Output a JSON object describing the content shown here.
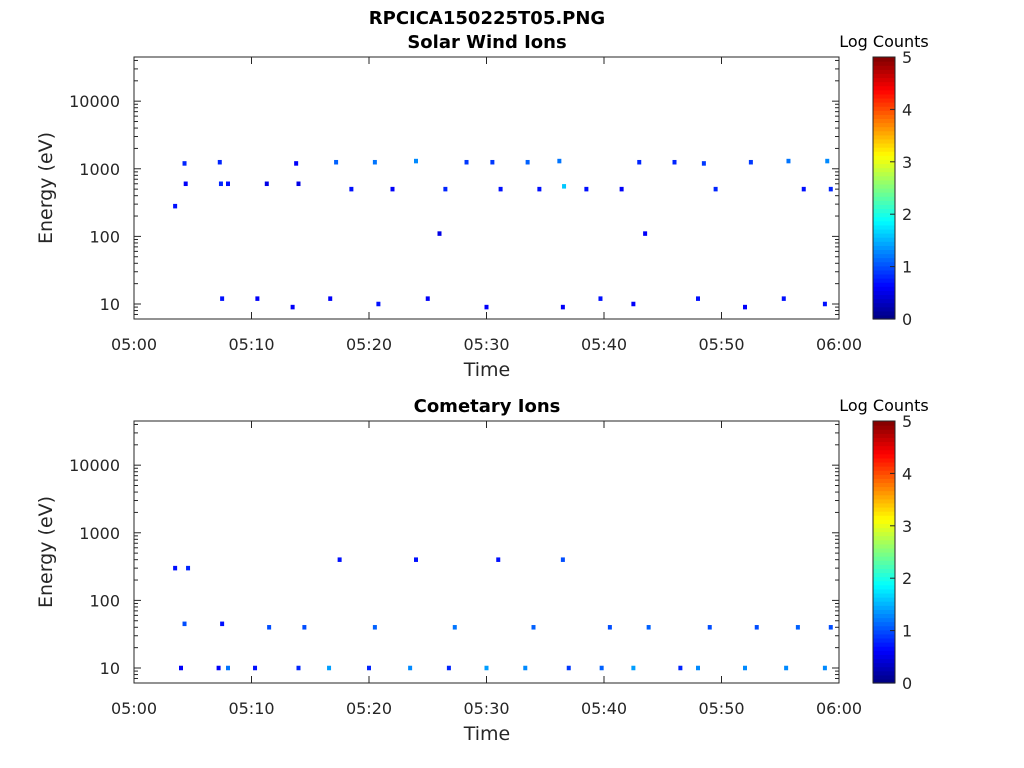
{
  "figure": {
    "title": "RPCICA150225T05.PNG"
  },
  "colorbar": {
    "label": "Log Counts",
    "ticks": [
      "0",
      "1",
      "2",
      "3",
      "4",
      "5"
    ]
  },
  "chart_data": [
    {
      "type": "heatmap",
      "title": "Solar Wind Ions",
      "xlabel": "Time",
      "ylabel": "Energy (eV)",
      "x_ticks": [
        "05:00",
        "05:10",
        "05:20",
        "05:30",
        "05:40",
        "05:50",
        "06:00"
      ],
      "x_range_minutes": [
        0,
        60
      ],
      "y_scale": "log",
      "ylim": [
        6,
        45000
      ],
      "y_ticks": [
        "10",
        "100",
        "1000",
        "10000"
      ],
      "color_scale": "jet",
      "clim": [
        0,
        5
      ],
      "cells": [
        {
          "t": 3.5,
          "e": 280,
          "c": 0.7
        },
        {
          "t": 4.3,
          "e": 1200,
          "c": 0.8
        },
        {
          "t": 4.4,
          "e": 600,
          "c": 0.6
        },
        {
          "t": 7.3,
          "e": 1250,
          "c": 0.8
        },
        {
          "t": 7.4,
          "e": 600,
          "c": 0.8
        },
        {
          "t": 8.0,
          "e": 600,
          "c": 0.7
        },
        {
          "t": 11.3,
          "e": 600,
          "c": 0.5
        },
        {
          "t": 13.8,
          "e": 1200,
          "c": 0.6
        },
        {
          "t": 14.0,
          "e": 600,
          "c": 0.5
        },
        {
          "t": 17.2,
          "e": 1250,
          "c": 1.1
        },
        {
          "t": 18.5,
          "e": 500,
          "c": 0.7
        },
        {
          "t": 20.5,
          "e": 1250,
          "c": 1.2
        },
        {
          "t": 22.0,
          "e": 500,
          "c": 0.6
        },
        {
          "t": 24.0,
          "e": 1300,
          "c": 1.3
        },
        {
          "t": 26.5,
          "e": 500,
          "c": 0.8
        },
        {
          "t": 28.3,
          "e": 1250,
          "c": 0.9
        },
        {
          "t": 30.5,
          "e": 1250,
          "c": 0.9
        },
        {
          "t": 31.2,
          "e": 500,
          "c": 0.7
        },
        {
          "t": 33.5,
          "e": 1250,
          "c": 1.1
        },
        {
          "t": 34.5,
          "e": 500,
          "c": 0.7
        },
        {
          "t": 36.2,
          "e": 1300,
          "c": 1.2
        },
        {
          "t": 36.6,
          "e": 550,
          "c": 1.6
        },
        {
          "t": 38.5,
          "e": 500,
          "c": 0.7
        },
        {
          "t": 41.5,
          "e": 500,
          "c": 0.6
        },
        {
          "t": 43.0,
          "e": 1250,
          "c": 0.8
        },
        {
          "t": 46.0,
          "e": 1250,
          "c": 0.8
        },
        {
          "t": 48.5,
          "e": 1200,
          "c": 0.9
        },
        {
          "t": 49.5,
          "e": 500,
          "c": 0.8
        },
        {
          "t": 52.5,
          "e": 1250,
          "c": 0.9
        },
        {
          "t": 55.7,
          "e": 1300,
          "c": 1.2
        },
        {
          "t": 57.0,
          "e": 500,
          "c": 0.7
        },
        {
          "t": 59.0,
          "e": 1300,
          "c": 1.3
        },
        {
          "t": 59.3,
          "e": 500,
          "c": 0.8
        },
        {
          "t": 43.5,
          "e": 110,
          "c": 0.6
        },
        {
          "t": 26.0,
          "e": 110,
          "c": 0.5
        },
        {
          "t": 7.5,
          "e": 12,
          "c": 0.7
        },
        {
          "t": 10.5,
          "e": 12,
          "c": 0.6
        },
        {
          "t": 13.5,
          "e": 9,
          "c": 0.6
        },
        {
          "t": 16.7,
          "e": 12,
          "c": 0.6
        },
        {
          "t": 20.8,
          "e": 10,
          "c": 0.7
        },
        {
          "t": 25.0,
          "e": 12,
          "c": 0.6
        },
        {
          "t": 30.0,
          "e": 9,
          "c": 0.6
        },
        {
          "t": 36.5,
          "e": 9,
          "c": 0.6
        },
        {
          "t": 39.7,
          "e": 12,
          "c": 0.7
        },
        {
          "t": 42.5,
          "e": 10,
          "c": 0.6
        },
        {
          "t": 48.0,
          "e": 12,
          "c": 0.7
        },
        {
          "t": 52.0,
          "e": 9,
          "c": 0.6
        },
        {
          "t": 55.3,
          "e": 12,
          "c": 0.7
        },
        {
          "t": 58.8,
          "e": 10,
          "c": 0.7
        }
      ]
    },
    {
      "type": "heatmap",
      "title": "Cometary Ions",
      "xlabel": "Time",
      "ylabel": "Energy (eV)",
      "x_ticks": [
        "05:00",
        "05:10",
        "05:20",
        "05:30",
        "05:40",
        "05:50",
        "06:00"
      ],
      "x_range_minutes": [
        0,
        60
      ],
      "y_scale": "log",
      "ylim": [
        6,
        45000
      ],
      "y_ticks": [
        "10",
        "100",
        "1000",
        "10000"
      ],
      "color_scale": "jet",
      "clim": [
        0,
        5
      ],
      "cells": [
        {
          "t": 3.5,
          "e": 300,
          "c": 0.7
        },
        {
          "t": 4.0,
          "e": 10,
          "c": 0.6
        },
        {
          "t": 4.3,
          "e": 45,
          "c": 1.0
        },
        {
          "t": 4.6,
          "e": 300,
          "c": 0.8
        },
        {
          "t": 7.2,
          "e": 10,
          "c": 0.6
        },
        {
          "t": 7.5,
          "e": 45,
          "c": 0.7
        },
        {
          "t": 8.0,
          "e": 10,
          "c": 1.2
        },
        {
          "t": 10.3,
          "e": 10,
          "c": 0.7
        },
        {
          "t": 11.5,
          "e": 40,
          "c": 1.0
        },
        {
          "t": 14.0,
          "e": 10,
          "c": 0.8
        },
        {
          "t": 14.5,
          "e": 40,
          "c": 1.0
        },
        {
          "t": 16.6,
          "e": 10,
          "c": 1.4
        },
        {
          "t": 17.5,
          "e": 400,
          "c": 0.7
        },
        {
          "t": 20.0,
          "e": 10,
          "c": 0.8
        },
        {
          "t": 20.5,
          "e": 40,
          "c": 1.1
        },
        {
          "t": 23.5,
          "e": 10,
          "c": 1.3
        },
        {
          "t": 24.0,
          "e": 400,
          "c": 0.7
        },
        {
          "t": 26.8,
          "e": 10,
          "c": 0.8
        },
        {
          "t": 27.3,
          "e": 40,
          "c": 1.2
        },
        {
          "t": 30.0,
          "e": 10,
          "c": 1.4
        },
        {
          "t": 31.0,
          "e": 400,
          "c": 0.7
        },
        {
          "t": 33.3,
          "e": 10,
          "c": 1.3
        },
        {
          "t": 34.0,
          "e": 40,
          "c": 1.1
        },
        {
          "t": 36.5,
          "e": 400,
          "c": 1.0
        },
        {
          "t": 37.0,
          "e": 10,
          "c": 0.9
        },
        {
          "t": 39.8,
          "e": 10,
          "c": 1.1
        },
        {
          "t": 40.5,
          "e": 40,
          "c": 1.0
        },
        {
          "t": 42.5,
          "e": 10,
          "c": 1.4
        },
        {
          "t": 43.8,
          "e": 40,
          "c": 1.1
        },
        {
          "t": 46.5,
          "e": 10,
          "c": 0.8
        },
        {
          "t": 48.0,
          "e": 10,
          "c": 1.3
        },
        {
          "t": 49.0,
          "e": 40,
          "c": 1.0
        },
        {
          "t": 52.0,
          "e": 10,
          "c": 1.3
        },
        {
          "t": 53.0,
          "e": 40,
          "c": 1.0
        },
        {
          "t": 55.5,
          "e": 10,
          "c": 1.3
        },
        {
          "t": 56.5,
          "e": 40,
          "c": 1.1
        },
        {
          "t": 58.8,
          "e": 10,
          "c": 1.3
        },
        {
          "t": 59.3,
          "e": 40,
          "c": 1.0
        }
      ]
    }
  ]
}
